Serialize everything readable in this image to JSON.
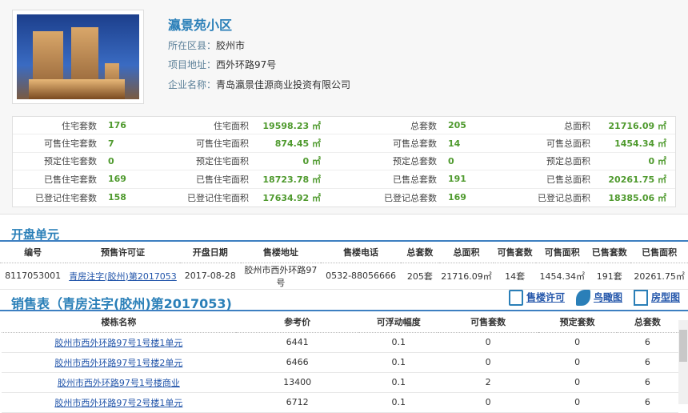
{
  "project": {
    "name": "瀛景苑小区",
    "district_label": "所在区县：",
    "district": "胶州市",
    "address_label": "项目地址：",
    "address": "西外环路97号",
    "company_label": "企业名称：",
    "company": "青岛瀛景佳源商业投资有限公司"
  },
  "stats": [
    [
      [
        "住宅套数",
        "176"
      ],
      [
        "住宅面积",
        "19598.23 ㎡"
      ],
      [
        "总套数",
        "205"
      ],
      [
        "总面积",
        "21716.09 ㎡"
      ]
    ],
    [
      [
        "可售住宅套数",
        "7"
      ],
      [
        "可售住宅面积",
        "874.45 ㎡"
      ],
      [
        "可售总套数",
        "14"
      ],
      [
        "可售总面积",
        "1454.34 ㎡"
      ]
    ],
    [
      [
        "预定住宅套数",
        "0"
      ],
      [
        "预定住宅面积",
        "0 ㎡"
      ],
      [
        "预定总套数",
        "0"
      ],
      [
        "预定总面积",
        "0 ㎡"
      ]
    ],
    [
      [
        "已售住宅套数",
        "169"
      ],
      [
        "已售住宅面积",
        "18723.78 ㎡"
      ],
      [
        "已售总套数",
        "191"
      ],
      [
        "已售总面积",
        "20261.75 ㎡"
      ]
    ],
    [
      [
        "已登记住宅套数",
        "158"
      ],
      [
        "已登记住宅面积",
        "17634.92 ㎡"
      ],
      [
        "已登记总套数",
        "169"
      ],
      [
        "已登记总面积",
        "18385.06 ㎡"
      ]
    ]
  ],
  "units": {
    "title": "开盘单元",
    "headers": [
      "编号",
      "预售许可证",
      "开盘日期",
      "售楼地址",
      "售楼电话",
      "总套数",
      "总面积",
      "可售套数",
      "可售面积",
      "已售套数",
      "已售面积"
    ],
    "rows": [
      [
        "8117053001",
        "青房注字(胶州)第2017053",
        "2017-08-28",
        "胶州市西外环路97号",
        "0532-88056666",
        "205套",
        "21716.09㎡",
        "14套",
        "1454.34㎡",
        "191套",
        "20261.75㎡"
      ]
    ]
  },
  "sales": {
    "title": "销售表（青房注字(胶州)第2017053)",
    "tools": [
      "售楼许可",
      "鸟瞰图",
      "房型图"
    ],
    "headers": [
      "楼栋名称",
      "参考价",
      "可浮动幅度",
      "可售套数",
      "预定套数",
      "总套数"
    ],
    "rows": [
      [
        "胶州市西外环路97号1号楼1单元",
        "6441",
        "0.1",
        "0",
        "0",
        "6"
      ],
      [
        "胶州市西外环路97号1号楼2单元",
        "6466",
        "0.1",
        "0",
        "0",
        "6"
      ],
      [
        "胶州市西外环路97号1号楼商业",
        "13400",
        "0.1",
        "2",
        "0",
        "6"
      ],
      [
        "胶州市西外环路97号2号楼1单元",
        "6712",
        "0.1",
        "0",
        "0",
        "6"
      ]
    ]
  },
  "colors": {
    "accent": "#2a7fb8",
    "value": "#4f9a2e",
    "rule": "#3d7fc1",
    "link": "#2255aa"
  }
}
